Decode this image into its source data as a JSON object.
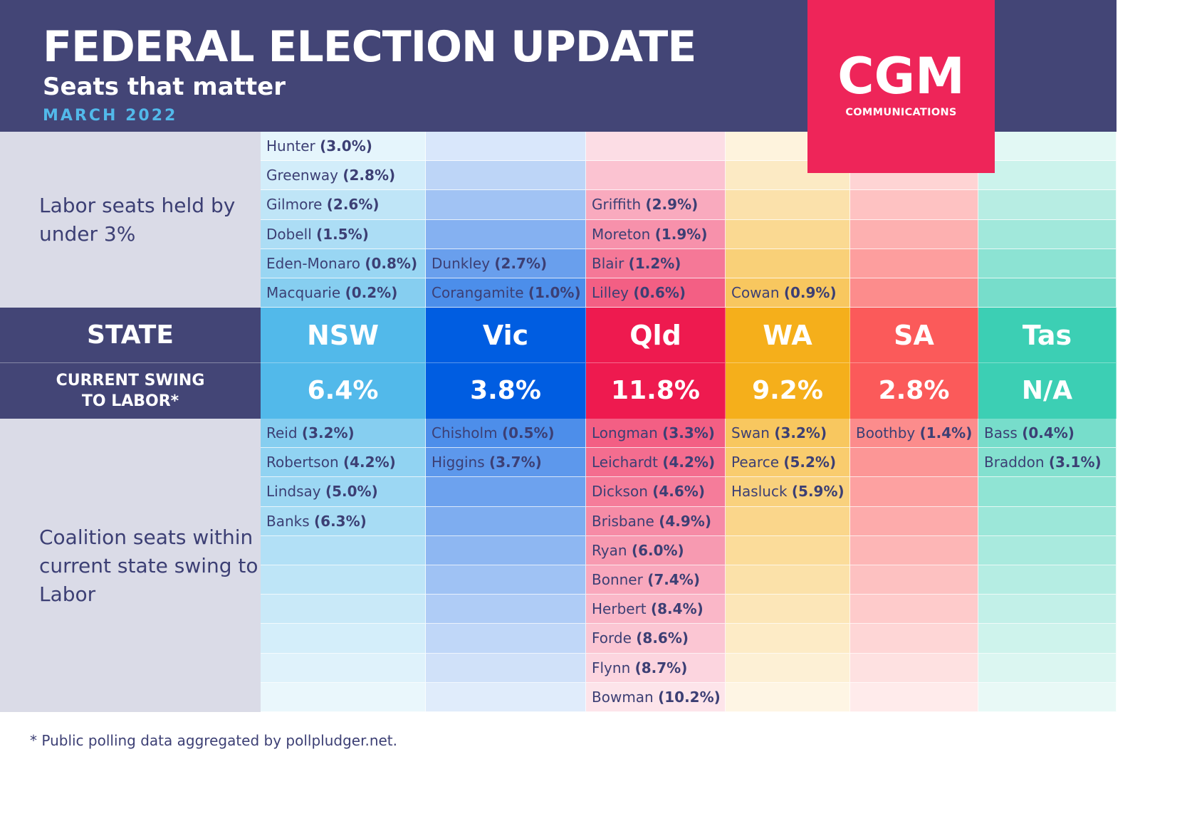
{
  "header": {
    "title": "FEDERAL ELECTION UPDATE",
    "subtitle": "Seats that matter",
    "date": "MARCH 2022"
  },
  "logo": {
    "main": "CGM",
    "sub": "COMMUNICATIONS"
  },
  "colors": {
    "navy": "#434576",
    "NSW": "#52b9ea",
    "Vic": "#005de1",
    "Qld": "#ee1a4f",
    "WA": "#f5af1b",
    "SA": "#fb5a5a",
    "Tas": "#3ccfb4",
    "logo": "#ee2559"
  },
  "labor_section": {
    "label": "Labor seats held by under 3%"
  },
  "state_row": {
    "label": "STATE"
  },
  "swing_row": {
    "label": "CURRENT SWING TO LABOR*"
  },
  "coalition_section": {
    "label": "Coalition seats within current state swing to Labor"
  },
  "states": [
    {
      "name": "NSW",
      "swing": "6.4%",
      "labor": [
        {
          "seat": "Hunter",
          "margin": "(3.0%)"
        },
        {
          "seat": "Greenway",
          "margin": "(2.8%)"
        },
        {
          "seat": "Gilmore",
          "margin": "(2.6%)"
        },
        {
          "seat": "Dobell",
          "margin": "(1.5%)"
        },
        {
          "seat": "Eden-Monaro",
          "margin": "(0.8%)"
        },
        {
          "seat": "Macquarie",
          "margin": "(0.2%)"
        }
      ],
      "coalition": [
        {
          "seat": "Reid",
          "margin": "(3.2%)"
        },
        {
          "seat": "Robertson",
          "margin": "(4.2%)"
        },
        {
          "seat": "Lindsay",
          "margin": "(5.0%)"
        },
        {
          "seat": "Banks",
          "margin": "(6.3%)"
        }
      ]
    },
    {
      "name": "Vic",
      "swing": "3.8%",
      "labor": [
        {
          "seat": "Dunkley",
          "margin": "(2.7%)"
        },
        {
          "seat": "Corangamite",
          "margin": "(1.0%)"
        }
      ],
      "coalition": [
        {
          "seat": "Chisholm",
          "margin": "(0.5%)"
        },
        {
          "seat": "Higgins",
          "margin": "(3.7%)"
        }
      ]
    },
    {
      "name": "Qld",
      "swing": "11.8%",
      "labor": [
        {
          "seat": "Griffith",
          "margin": "(2.9%)"
        },
        {
          "seat": "Moreton",
          "margin": "(1.9%)"
        },
        {
          "seat": "Blair",
          "margin": "(1.2%)"
        },
        {
          "seat": "Lilley",
          "margin": "(0.6%)"
        }
      ],
      "coalition": [
        {
          "seat": "Longman",
          "margin": "(3.3%)"
        },
        {
          "seat": "Leichardt",
          "margin": "(4.2%)"
        },
        {
          "seat": "Dickson",
          "margin": "(4.6%)"
        },
        {
          "seat": "Brisbane",
          "margin": "(4.9%)"
        },
        {
          "seat": "Ryan",
          "margin": "(6.0%)"
        },
        {
          "seat": "Bonner",
          "margin": "(7.4%)"
        },
        {
          "seat": "Herbert",
          "margin": "(8.4%)"
        },
        {
          "seat": "Forde",
          "margin": "(8.6%)"
        },
        {
          "seat": "Flynn",
          "margin": "(8.7%)"
        },
        {
          "seat": "Bowman",
          "margin": "(10.2%)"
        }
      ]
    },
    {
      "name": "WA",
      "swing": "9.2%",
      "labor": [
        {
          "seat": "Cowan",
          "margin": "(0.9%)"
        }
      ],
      "coalition": [
        {
          "seat": "Swan",
          "margin": "(3.2%)"
        },
        {
          "seat": "Pearce",
          "margin": "(5.2%)"
        },
        {
          "seat": "Hasluck",
          "margin": "(5.9%)"
        }
      ]
    },
    {
      "name": "SA",
      "swing": "2.8%",
      "labor": [],
      "coalition": [
        {
          "seat": "Boothby",
          "margin": "(1.4%)"
        }
      ]
    },
    {
      "name": "Tas",
      "swing": "N/A",
      "labor": [],
      "coalition": [
        {
          "seat": "Bass",
          "margin": "(0.4%)"
        },
        {
          "seat": "Braddon",
          "margin": "(3.1%)"
        }
      ]
    }
  ],
  "footnote": "* Public polling data aggregated by pollpludger.net."
}
